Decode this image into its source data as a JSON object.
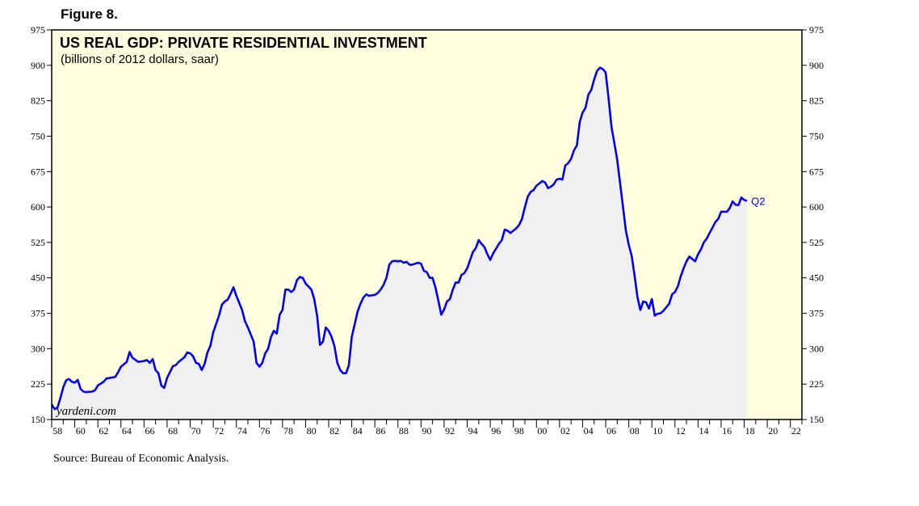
{
  "figure_label": "Figure 8.",
  "source": "Source: Bureau of Economic Analysis.",
  "watermark": "yardeni.com",
  "colors": {
    "panel": "#ffffe0",
    "line": "#0000ee",
    "fill": "#f0f0f0"
  },
  "chart_data": {
    "type": "area",
    "title": "US REAL GDP: PRIVATE RESIDENTIAL INVESTMENT",
    "subtitle": "(billions of 2012 dollars, saar)",
    "xlabel": "",
    "ylabel": "",
    "end_label": "Q2",
    "ylim": [
      150,
      975
    ],
    "xlim": [
      1958,
      2023
    ],
    "y_ticks": [
      "975",
      "900",
      "825",
      "750",
      "675",
      "600",
      "525",
      "450",
      "375",
      "300",
      "225",
      "150"
    ],
    "x_tick_labels": [
      "58",
      "60",
      "62",
      "64",
      "66",
      "68",
      "70",
      "72",
      "74",
      "76",
      "78",
      "80",
      "82",
      "84",
      "86",
      "88",
      "90",
      "92",
      "94",
      "96",
      "98",
      "00",
      "02",
      "04",
      "06",
      "08",
      "10",
      "12",
      "14",
      "16",
      "18",
      "20",
      "22"
    ],
    "series": [
      {
        "name": "Private Residential Investment",
        "points": [
          [
            1958.0,
            182
          ],
          [
            1958.25,
            172
          ],
          [
            1958.5,
            175
          ],
          [
            1958.75,
            195
          ],
          [
            1959.0,
            218
          ],
          [
            1959.25,
            233
          ],
          [
            1959.5,
            236
          ],
          [
            1959.75,
            230
          ],
          [
            1960.0,
            228
          ],
          [
            1960.25,
            234
          ],
          [
            1960.5,
            215
          ],
          [
            1960.75,
            209
          ],
          [
            1961.0,
            208
          ],
          [
            1961.5,
            209
          ],
          [
            1961.75,
            212
          ],
          [
            1962.0,
            222
          ],
          [
            1962.5,
            230
          ],
          [
            1962.75,
            237
          ],
          [
            1963.0,
            238
          ],
          [
            1963.5,
            240
          ],
          [
            1963.75,
            250
          ],
          [
            1964.0,
            262
          ],
          [
            1964.5,
            272
          ],
          [
            1964.75,
            293
          ],
          [
            1965.0,
            281
          ],
          [
            1965.5,
            272
          ],
          [
            1966.0,
            274
          ],
          [
            1966.25,
            276
          ],
          [
            1966.5,
            270
          ],
          [
            1966.75,
            278
          ],
          [
            1967.0,
            255
          ],
          [
            1967.25,
            248
          ],
          [
            1967.5,
            222
          ],
          [
            1967.75,
            217
          ],
          [
            1968.0,
            238
          ],
          [
            1968.5,
            263
          ],
          [
            1968.75,
            265
          ],
          [
            1969.0,
            272
          ],
          [
            1969.5,
            282
          ],
          [
            1969.75,
            292
          ],
          [
            1970.0,
            290
          ],
          [
            1970.25,
            284
          ],
          [
            1970.5,
            270
          ],
          [
            1970.75,
            268
          ],
          [
            1971.0,
            255
          ],
          [
            1971.25,
            268
          ],
          [
            1971.5,
            292
          ],
          [
            1971.75,
            306
          ],
          [
            1972.0,
            335
          ],
          [
            1972.5,
            370
          ],
          [
            1972.75,
            393
          ],
          [
            1973.0,
            400
          ],
          [
            1973.25,
            404
          ],
          [
            1973.5,
            416
          ],
          [
            1973.75,
            430
          ],
          [
            1974.0,
            412
          ],
          [
            1974.5,
            382
          ],
          [
            1974.75,
            358
          ],
          [
            1975.0,
            345
          ],
          [
            1975.5,
            315
          ],
          [
            1975.75,
            270
          ],
          [
            1976.0,
            262
          ],
          [
            1976.25,
            270
          ],
          [
            1976.5,
            290
          ],
          [
            1976.75,
            300
          ],
          [
            1977.0,
            325
          ],
          [
            1977.25,
            338
          ],
          [
            1977.5,
            332
          ],
          [
            1977.75,
            372
          ],
          [
            1978.0,
            382
          ],
          [
            1978.25,
            425
          ],
          [
            1978.5,
            425
          ],
          [
            1978.75,
            420
          ],
          [
            1979.0,
            425
          ],
          [
            1979.25,
            445
          ],
          [
            1979.5,
            452
          ],
          [
            1979.75,
            450
          ],
          [
            1980.0,
            438
          ],
          [
            1980.5,
            425
          ],
          [
            1980.75,
            405
          ],
          [
            1981.0,
            370
          ],
          [
            1981.25,
            308
          ],
          [
            1981.5,
            315
          ],
          [
            1981.75,
            345
          ],
          [
            1982.0,
            338
          ],
          [
            1982.25,
            325
          ],
          [
            1982.5,
            305
          ],
          [
            1982.75,
            270
          ],
          [
            1983.0,
            255
          ],
          [
            1983.25,
            248
          ],
          [
            1983.5,
            248
          ],
          [
            1983.75,
            265
          ],
          [
            1984.0,
            325
          ],
          [
            1984.5,
            378
          ],
          [
            1984.75,
            395
          ],
          [
            1985.0,
            408
          ],
          [
            1985.25,
            415
          ],
          [
            1985.5,
            412
          ],
          [
            1986.0,
            414
          ],
          [
            1986.25,
            418
          ],
          [
            1986.5,
            425
          ],
          [
            1986.75,
            435
          ],
          [
            1987.0,
            450
          ],
          [
            1987.25,
            478
          ],
          [
            1987.5,
            485
          ],
          [
            1987.75,
            486
          ],
          [
            1988.0,
            485
          ],
          [
            1988.25,
            486
          ],
          [
            1988.5,
            482
          ],
          [
            1988.75,
            484
          ],
          [
            1989.0,
            478
          ],
          [
            1989.25,
            478
          ],
          [
            1989.5,
            480
          ],
          [
            1989.75,
            482
          ],
          [
            1990.0,
            480
          ],
          [
            1990.25,
            465
          ],
          [
            1990.5,
            462
          ],
          [
            1990.75,
            450
          ],
          [
            1991.0,
            450
          ],
          [
            1991.25,
            430
          ],
          [
            1991.5,
            402
          ],
          [
            1991.75,
            372
          ],
          [
            1992.0,
            383
          ],
          [
            1992.25,
            400
          ],
          [
            1992.5,
            405
          ],
          [
            1992.75,
            425
          ],
          [
            1993.0,
            440
          ],
          [
            1993.25,
            440
          ],
          [
            1993.5,
            456
          ],
          [
            1993.75,
            460
          ],
          [
            1994.0,
            470
          ],
          [
            1994.5,
            505
          ],
          [
            1994.75,
            513
          ],
          [
            1995.0,
            530
          ],
          [
            1995.25,
            522
          ],
          [
            1995.5,
            515
          ],
          [
            1995.75,
            500
          ],
          [
            1996.0,
            488
          ],
          [
            1996.25,
            502
          ],
          [
            1996.5,
            512
          ],
          [
            1996.75,
            522
          ],
          [
            1997.0,
            530
          ],
          [
            1997.25,
            552
          ],
          [
            1997.5,
            550
          ],
          [
            1997.75,
            545
          ],
          [
            1998.0,
            550
          ],
          [
            1998.25,
            555
          ],
          [
            1998.5,
            562
          ],
          [
            1998.75,
            575
          ],
          [
            1999.0,
            600
          ],
          [
            1999.25,
            622
          ],
          [
            1999.5,
            632
          ],
          [
            1999.75,
            636
          ],
          [
            2000.0,
            645
          ],
          [
            2000.25,
            650
          ],
          [
            2000.5,
            655
          ],
          [
            2000.75,
            652
          ],
          [
            2001.0,
            640
          ],
          [
            2001.25,
            643
          ],
          [
            2001.5,
            648
          ],
          [
            2001.75,
            658
          ],
          [
            2002.0,
            660
          ],
          [
            2002.25,
            658
          ],
          [
            2002.5,
            688
          ],
          [
            2002.75,
            693
          ],
          [
            2003.0,
            702
          ],
          [
            2003.25,
            720
          ],
          [
            2003.5,
            730
          ],
          [
            2003.75,
            780
          ],
          [
            2004.0,
            800
          ],
          [
            2004.25,
            810
          ],
          [
            2004.5,
            838
          ],
          [
            2004.75,
            848
          ],
          [
            2005.0,
            870
          ],
          [
            2005.25,
            888
          ],
          [
            2005.5,
            895
          ],
          [
            2005.75,
            892
          ],
          [
            2006.0,
            885
          ],
          [
            2006.25,
            830
          ],
          [
            2006.5,
            770
          ],
          [
            2006.75,
            735
          ],
          [
            2007.0,
            700
          ],
          [
            2007.25,
            650
          ],
          [
            2007.5,
            600
          ],
          [
            2007.75,
            550
          ],
          [
            2008.0,
            520
          ],
          [
            2008.25,
            497
          ],
          [
            2008.5,
            455
          ],
          [
            2008.75,
            410
          ],
          [
            2009.0,
            382
          ],
          [
            2009.25,
            400
          ],
          [
            2009.5,
            398
          ],
          [
            2009.75,
            385
          ],
          [
            2010.0,
            405
          ],
          [
            2010.25,
            370
          ],
          [
            2010.5,
            374
          ],
          [
            2010.75,
            375
          ],
          [
            2011.0,
            380
          ],
          [
            2011.25,
            388
          ],
          [
            2011.5,
            395
          ],
          [
            2011.75,
            415
          ],
          [
            2012.0,
            420
          ],
          [
            2012.25,
            432
          ],
          [
            2012.5,
            453
          ],
          [
            2012.75,
            470
          ],
          [
            2013.0,
            485
          ],
          [
            2013.25,
            495
          ],
          [
            2013.5,
            490
          ],
          [
            2013.75,
            485
          ],
          [
            2014.0,
            500
          ],
          [
            2014.25,
            510
          ],
          [
            2014.5,
            525
          ],
          [
            2014.75,
            533
          ],
          [
            2015.0,
            545
          ],
          [
            2015.25,
            556
          ],
          [
            2015.5,
            568
          ],
          [
            2015.75,
            575
          ],
          [
            2016.0,
            590
          ],
          [
            2016.25,
            590
          ],
          [
            2016.5,
            590
          ],
          [
            2016.75,
            598
          ],
          [
            2017.0,
            612
          ],
          [
            2017.25,
            605
          ],
          [
            2017.5,
            604
          ],
          [
            2017.75,
            620
          ],
          [
            2018.0,
            615
          ],
          [
            2018.25,
            613
          ]
        ]
      }
    ]
  }
}
